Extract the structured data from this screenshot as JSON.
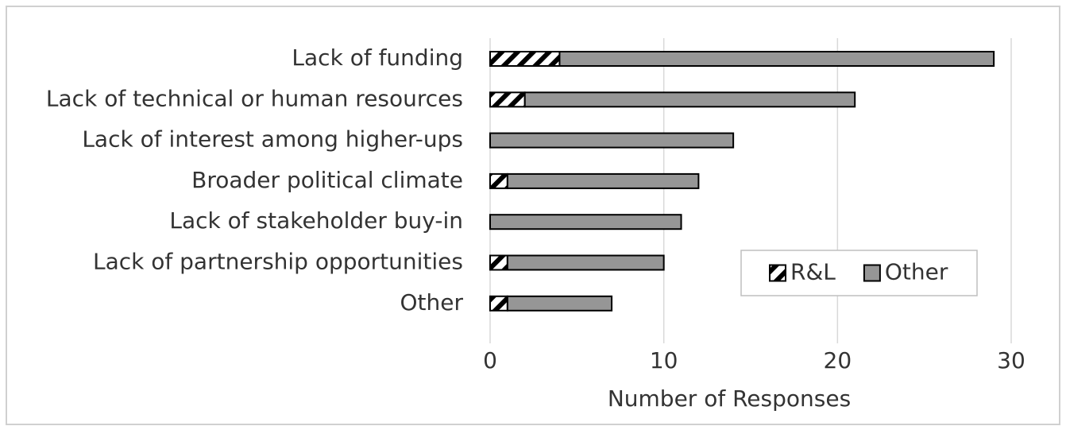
{
  "chart_data": {
    "type": "stacked_barh",
    "categories": [
      "Lack of funding",
      "Lack of technical or human resources",
      "Lack of interest among higher-ups",
      "Broader political climate",
      "Lack of stakeholder buy-in",
      "Lack of partnership opportunities",
      "Other"
    ],
    "series": [
      {
        "name": "R&L",
        "color": "#000000",
        "values": [
          4,
          2,
          0,
          1,
          0,
          1,
          1
        ]
      },
      {
        "name": "Other",
        "color": "#969696",
        "values": [
          25,
          19,
          14,
          11,
          11,
          9,
          6
        ]
      }
    ],
    "xlabel": "Number of Responses",
    "xlim": [
      0,
      30
    ],
    "xticks": [
      0,
      10,
      20,
      30
    ],
    "grid": true,
    "legend": "lower right"
  }
}
